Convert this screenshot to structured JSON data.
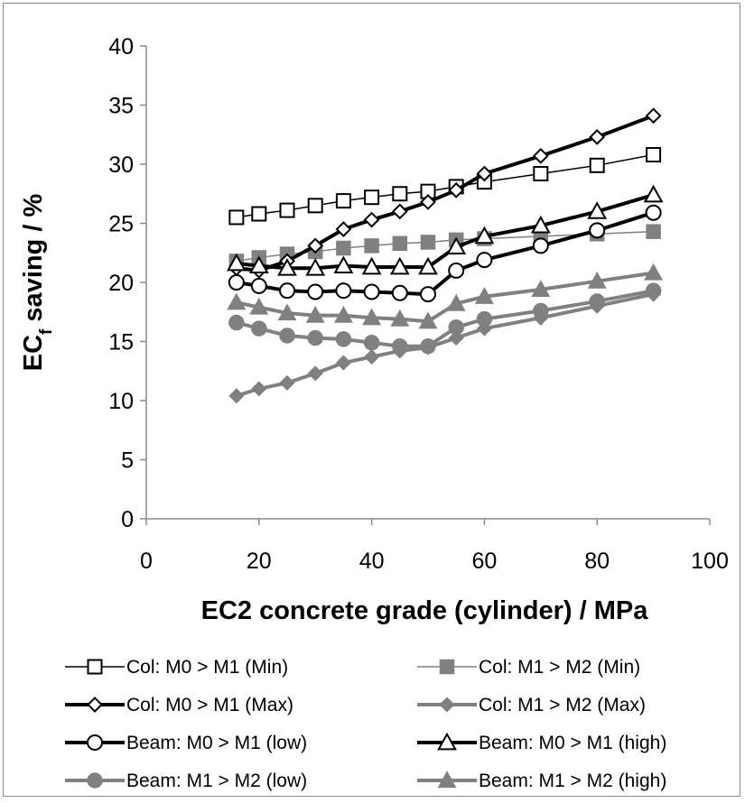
{
  "chart_data": {
    "type": "line",
    "xlabel": "EC2 concrete grade (cylinder) / MPa",
    "ylabel_main": "EC",
    "ylabel_sub": "f",
    "ylabel_rest": " saving / %",
    "xlim": [
      0,
      100
    ],
    "ylim": [
      0,
      40
    ],
    "x_ticks": [
      "0",
      "20",
      "40",
      "60",
      "80",
      "100"
    ],
    "y_ticks": [
      "0",
      "5",
      "10",
      "15",
      "20",
      "25",
      "30",
      "35",
      "40"
    ],
    "x": [
      16,
      20,
      25,
      30,
      35,
      40,
      45,
      50,
      55,
      60,
      70,
      80,
      90
    ],
    "grid": false,
    "legend_position": "bottom",
    "series": [
      {
        "name": "Col: M0 > M1 (Min)",
        "color": "#000000",
        "marker": "square-open",
        "line": "thin",
        "values": [
          25.5,
          25.8,
          26.1,
          26.5,
          26.9,
          27.2,
          27.5,
          27.7,
          28.1,
          28.5,
          29.2,
          29.9,
          30.8
        ]
      },
      {
        "name": "Col: M1 > M2 (Min)",
        "color": "#808080",
        "marker": "square-filled",
        "line": "thin",
        "values": [
          21.8,
          22.1,
          22.4,
          22.6,
          22.9,
          23.1,
          23.3,
          23.4,
          23.6,
          23.7,
          23.9,
          24.1,
          24.3
        ]
      },
      {
        "name": "Col: M0 > M1 (Max)",
        "color": "#000000",
        "marker": "diamond-open",
        "line": "thick",
        "values": [
          21.2,
          21.0,
          21.8,
          23.1,
          24.5,
          25.3,
          26.0,
          26.8,
          27.8,
          29.2,
          30.7,
          32.3,
          34.1
        ]
      },
      {
        "name": "Col: M1 > M2 (Max)",
        "color": "#808080",
        "marker": "diamond-filled",
        "line": "thick",
        "values": [
          10.4,
          11.0,
          11.5,
          12.3,
          13.2,
          13.7,
          14.2,
          14.5,
          15.3,
          16.1,
          17.0,
          18.0,
          19.0
        ]
      },
      {
        "name": "Beam: M0 > M1 (low)",
        "color": "#000000",
        "marker": "circle-open",
        "line": "thick",
        "values": [
          20.0,
          19.7,
          19.3,
          19.2,
          19.3,
          19.2,
          19.1,
          19.0,
          21.0,
          21.9,
          23.1,
          24.4,
          25.9
        ]
      },
      {
        "name": "Beam: M0 > M1 (high)",
        "color": "#000000",
        "marker": "triangle-open",
        "line": "thick",
        "values": [
          21.6,
          21.4,
          21.2,
          21.2,
          21.4,
          21.3,
          21.3,
          21.3,
          23.0,
          23.9,
          24.8,
          26.0,
          27.4
        ]
      },
      {
        "name": "Beam: M1 > M2 (low)",
        "color": "#808080",
        "marker": "circle-filled",
        "line": "thick",
        "values": [
          16.6,
          16.1,
          15.5,
          15.3,
          15.2,
          14.9,
          14.6,
          14.6,
          16.2,
          16.9,
          17.6,
          18.4,
          19.3
        ]
      },
      {
        "name": "Beam: M1 > M2 (high)",
        "color": "#808080",
        "marker": "triangle-filled",
        "line": "thick",
        "values": [
          18.3,
          17.9,
          17.4,
          17.2,
          17.2,
          17.0,
          16.9,
          16.7,
          18.2,
          18.8,
          19.4,
          20.1,
          20.8
        ]
      }
    ]
  }
}
